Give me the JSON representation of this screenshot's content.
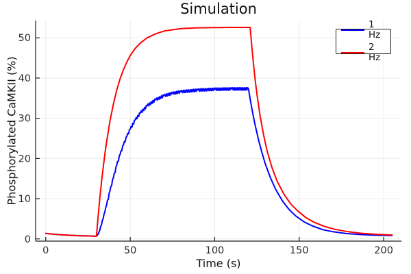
{
  "title": "Simulation",
  "chart_data": {
    "type": "line",
    "title": "Simulation",
    "xlabel": "Time (s)",
    "ylabel": "Phosphorylated CaMKII (%)",
    "xlim": [
      -6,
      210.5
    ],
    "ylim": [
      -0.55,
      54.3
    ],
    "x_ticks": [
      0,
      50,
      100,
      150,
      200
    ],
    "y_ticks": [
      0,
      10,
      20,
      30,
      40,
      50
    ],
    "grid": true,
    "grid_color": "#000000",
    "grid_opacity": 0.08,
    "axis_color": "#1a1a1a",
    "tick_label_color": "#2a2a2a",
    "legend_position": "top-right",
    "stimulus_window_s": [
      30,
      120
    ],
    "series": [
      {
        "name": "1 Hz",
        "color": "#0000ff",
        "line_width": 2,
        "ripple": {
          "amplitude": 0.3,
          "period_s": 1,
          "t_start": 32,
          "t_end": 120
        },
        "points": [
          [
            0,
            1.35
          ],
          [
            5,
            1.15
          ],
          [
            10,
            1.0
          ],
          [
            15,
            0.88
          ],
          [
            20,
            0.8
          ],
          [
            25,
            0.74
          ],
          [
            29,
            0.7
          ],
          [
            30,
            0.7
          ],
          [
            31,
            1.2
          ],
          [
            32,
            2.2
          ],
          [
            33,
            3.5
          ],
          [
            34,
            5.1
          ],
          [
            35,
            6.7
          ],
          [
            36,
            8.4
          ],
          [
            38,
            11.9
          ],
          [
            40,
            15.2
          ],
          [
            42,
            18.3
          ],
          [
            44,
            21.0
          ],
          [
            46,
            23.4
          ],
          [
            48,
            25.5
          ],
          [
            50,
            27.3
          ],
          [
            53,
            29.6
          ],
          [
            56,
            31.3
          ],
          [
            60,
            33.1
          ],
          [
            65,
            34.6
          ],
          [
            70,
            35.6
          ],
          [
            75,
            36.2
          ],
          [
            80,
            36.6
          ],
          [
            90,
            37.0
          ],
          [
            100,
            37.2
          ],
          [
            110,
            37.3
          ],
          [
            120,
            37.3
          ],
          [
            121,
            34.8
          ],
          [
            122,
            32.4
          ],
          [
            123,
            30.2
          ],
          [
            124,
            28.2
          ],
          [
            126,
            24.5
          ],
          [
            128,
            21.4
          ],
          [
            130,
            18.6
          ],
          [
            133,
            15.2
          ],
          [
            136,
            12.4
          ],
          [
            140,
            9.5
          ],
          [
            144,
            7.3
          ],
          [
            148,
            5.7
          ],
          [
            153,
            4.2
          ],
          [
            158,
            3.2
          ],
          [
            164,
            2.3
          ],
          [
            170,
            1.78
          ],
          [
            178,
            1.33
          ],
          [
            186,
            1.08
          ],
          [
            195,
            0.92
          ],
          [
            205,
            0.83
          ]
        ]
      },
      {
        "name": "2 Hz",
        "color": "#ff0000",
        "line_width": 2,
        "points": [
          [
            0,
            1.35
          ],
          [
            5,
            1.15
          ],
          [
            10,
            1.0
          ],
          [
            15,
            0.88
          ],
          [
            20,
            0.8
          ],
          [
            25,
            0.74
          ],
          [
            29,
            0.7
          ],
          [
            30,
            0.7
          ],
          [
            31,
            5.7
          ],
          [
            32,
            10.1
          ],
          [
            33,
            14.2
          ],
          [
            34,
            17.8
          ],
          [
            35,
            21.1
          ],
          [
            36,
            24.1
          ],
          [
            38,
            29.3
          ],
          [
            40,
            33.5
          ],
          [
            42,
            37.0
          ],
          [
            44,
            39.8
          ],
          [
            46,
            42.1
          ],
          [
            48,
            44.0
          ],
          [
            50,
            45.6
          ],
          [
            53,
            47.4
          ],
          [
            56,
            48.7
          ],
          [
            60,
            50.0
          ],
          [
            65,
            51.0
          ],
          [
            70,
            51.7
          ],
          [
            75,
            52.0
          ],
          [
            80,
            52.3
          ],
          [
            90,
            52.5
          ],
          [
            100,
            52.55
          ],
          [
            110,
            52.6
          ],
          [
            121,
            52.6
          ],
          [
            122,
            47.6
          ],
          [
            123,
            43.3
          ],
          [
            124,
            39.4
          ],
          [
            125,
            36.0
          ],
          [
            127,
            30.3
          ],
          [
            129,
            25.7
          ],
          [
            131,
            21.9
          ],
          [
            134,
            17.6
          ],
          [
            137,
            14.3
          ],
          [
            141,
            11.1
          ],
          [
            145,
            8.7
          ],
          [
            149,
            7.0
          ],
          [
            154,
            5.3
          ],
          [
            159,
            4.1
          ],
          [
            165,
            3.1
          ],
          [
            171,
            2.4
          ],
          [
            179,
            1.78
          ],
          [
            187,
            1.39
          ],
          [
            196,
            1.13
          ],
          [
            205,
            0.97
          ]
        ]
      }
    ]
  }
}
